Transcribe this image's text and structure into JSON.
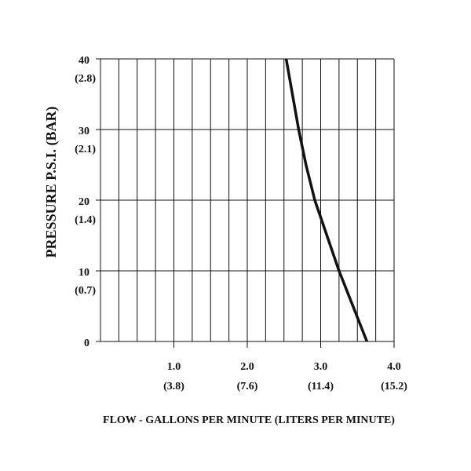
{
  "chart_data": {
    "type": "line",
    "x_label": "FLOW - GALLONS PER MINUTE  (LITERS PER MINUTE)",
    "y_label": "PRESSURE P.S.I. (BAR)",
    "xlim": [
      0,
      4.0
    ],
    "ylim": [
      0,
      40
    ],
    "xticks": [
      {
        "value": 1,
        "label": "1.0"
      },
      {
        "value": 2,
        "label": "2.0"
      },
      {
        "value": 3,
        "label": "3.0"
      },
      {
        "value": 4,
        "label": "4.0"
      }
    ],
    "xtick_secondary_labels": [
      "(3.8)",
      "(7.6)",
      "(11.4)",
      "(15.2)"
    ],
    "yticks": [
      0,
      10,
      20,
      30,
      40
    ],
    "ytick_secondary_labels": [
      null,
      "(0.7)",
      "(1.4)",
      "(2.1)",
      "(2.8)"
    ],
    "x_grid": [
      0,
      0.25,
      0.5,
      0.75,
      1,
      1.25,
      1.5,
      1.75,
      2,
      2.25,
      2.5,
      2.75,
      3,
      3.25,
      3.5,
      3.75,
      4
    ],
    "grid": true,
    "series": [
      {
        "color": "#111111",
        "x": [
          3.63,
          3.25,
          2.92,
          2.8,
          2.7,
          2.53
        ],
        "values": [
          0,
          10,
          20,
          25,
          30,
          40
        ]
      }
    ]
  }
}
